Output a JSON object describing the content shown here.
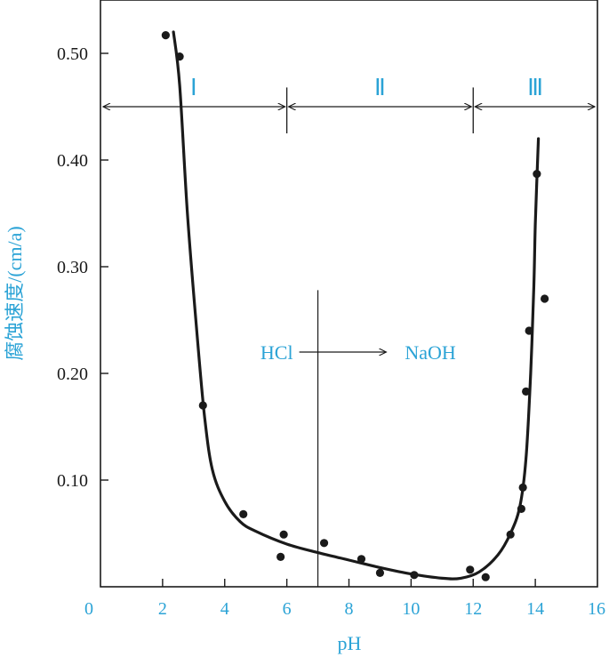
{
  "colors": {
    "label": "#2ba3d6",
    "ink": "#1a1a1a"
  },
  "chart_data": {
    "type": "scatter",
    "xlabel": "pH",
    "ylabel": "腐蚀速度/(cm/a)",
    "xlim": [
      0,
      16
    ],
    "ylim": [
      0,
      0.55
    ],
    "x_ticks": [
      "0",
      "2",
      "4",
      "6",
      "8",
      "10",
      "12",
      "14",
      "16"
    ],
    "y_ticks": [
      "0.10",
      "0.20",
      "0.30",
      "0.40",
      "0.50"
    ],
    "points": [
      {
        "x": 2.1,
        "y": 0.517
      },
      {
        "x": 2.55,
        "y": 0.497
      },
      {
        "x": 3.3,
        "y": 0.17
      },
      {
        "x": 4.6,
        "y": 0.068
      },
      {
        "x": 5.8,
        "y": 0.028
      },
      {
        "x": 5.9,
        "y": 0.049
      },
      {
        "x": 7.2,
        "y": 0.041
      },
      {
        "x": 8.4,
        "y": 0.026
      },
      {
        "x": 9.0,
        "y": 0.013
      },
      {
        "x": 10.1,
        "y": 0.011
      },
      {
        "x": 11.9,
        "y": 0.016
      },
      {
        "x": 12.4,
        "y": 0.009
      },
      {
        "x": 13.2,
        "y": 0.049
      },
      {
        "x": 13.55,
        "y": 0.073
      },
      {
        "x": 13.6,
        "y": 0.093
      },
      {
        "x": 13.7,
        "y": 0.183
      },
      {
        "x": 13.8,
        "y": 0.24
      },
      {
        "x": 14.05,
        "y": 0.387
      },
      {
        "x": 14.3,
        "y": 0.27
      }
    ],
    "curve": [
      {
        "x": 2.35,
        "y": 0.52
      },
      {
        "x": 2.55,
        "y": 0.47
      },
      {
        "x": 2.8,
        "y": 0.35
      },
      {
        "x": 3.1,
        "y": 0.24
      },
      {
        "x": 3.35,
        "y": 0.16
      },
      {
        "x": 3.6,
        "y": 0.11
      },
      {
        "x": 4.0,
        "y": 0.08
      },
      {
        "x": 4.5,
        "y": 0.061
      },
      {
        "x": 5.0,
        "y": 0.052
      },
      {
        "x": 6.0,
        "y": 0.04
      },
      {
        "x": 7.0,
        "y": 0.032
      },
      {
        "x": 8.0,
        "y": 0.025
      },
      {
        "x": 9.0,
        "y": 0.018
      },
      {
        "x": 10.0,
        "y": 0.012
      },
      {
        "x": 11.0,
        "y": 0.008
      },
      {
        "x": 11.6,
        "y": 0.008
      },
      {
        "x": 12.2,
        "y": 0.014
      },
      {
        "x": 12.8,
        "y": 0.03
      },
      {
        "x": 13.2,
        "y": 0.05
      },
      {
        "x": 13.5,
        "y": 0.075
      },
      {
        "x": 13.7,
        "y": 0.12
      },
      {
        "x": 13.85,
        "y": 0.2
      },
      {
        "x": 13.95,
        "y": 0.28
      },
      {
        "x": 14.0,
        "y": 0.34
      },
      {
        "x": 14.1,
        "y": 0.42
      }
    ],
    "regions": [
      {
        "label": "Ⅰ",
        "x0": 0,
        "x1": 6
      },
      {
        "label": "Ⅱ",
        "x0": 6,
        "x1": 12
      },
      {
        "label": "Ⅲ",
        "x0": 12,
        "x1": 16
      }
    ],
    "region_arrow_y": 0.45,
    "separator_ph": 7,
    "annotation": {
      "left": "HCl",
      "right": "NaOH",
      "y": 0.22
    }
  }
}
